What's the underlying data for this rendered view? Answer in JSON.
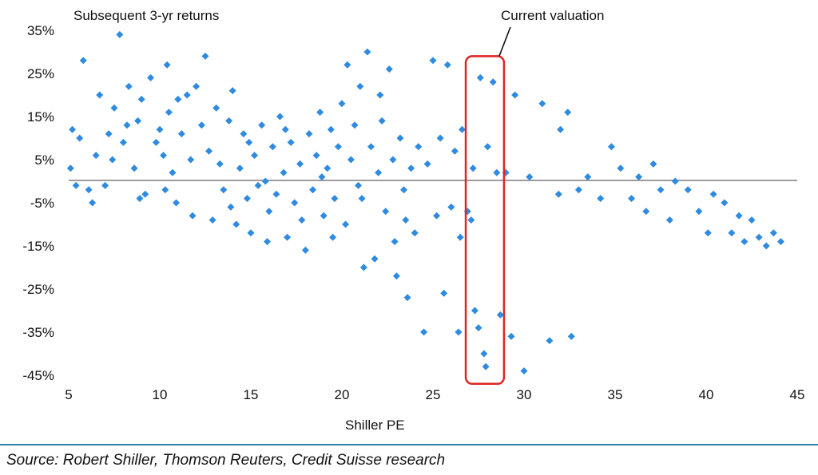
{
  "chart_data": {
    "type": "scatter",
    "title": "Subsequent 3-yr returns",
    "xlabel": "Shiller PE",
    "ylabel": "",
    "xlim": [
      5,
      45
    ],
    "ylim": [
      -45,
      35
    ],
    "x_ticks": [
      "5",
      "10",
      "15",
      "20",
      "25",
      "30",
      "35",
      "40",
      "45"
    ],
    "y_ticks": [
      "35%",
      "25%",
      "15%",
      "5%",
      "-5%",
      "-15%",
      "-25%",
      "-35%",
      "-45%"
    ],
    "grid": false,
    "marker_color": "#2e8be0",
    "highlight_box_color": "#e02424",
    "annotation": {
      "text": "Current valuation",
      "x_range": [
        26.8,
        28.9
      ],
      "y_range": [
        -47,
        29
      ]
    },
    "series": [
      {
        "points": [
          [
            5.1,
            3
          ],
          [
            5.2,
            12
          ],
          [
            5.4,
            -1
          ],
          [
            5.6,
            10
          ],
          [
            5.8,
            28
          ],
          [
            6.1,
            -2
          ],
          [
            6.3,
            -5
          ],
          [
            6.5,
            6
          ],
          [
            6.7,
            20
          ],
          [
            7.0,
            -1
          ],
          [
            7.2,
            11
          ],
          [
            7.5,
            17
          ],
          [
            7.8,
            34
          ],
          [
            8.0,
            9
          ],
          [
            8.2,
            13
          ],
          [
            8.3,
            22
          ],
          [
            8.6,
            3
          ],
          [
            8.8,
            14
          ],
          [
            9.0,
            19
          ],
          [
            9.2,
            -3
          ],
          [
            9.5,
            24
          ],
          [
            9.8,
            9
          ],
          [
            10.0,
            12
          ],
          [
            10.2,
            6
          ],
          [
            10.4,
            27
          ],
          [
            10.5,
            16
          ],
          [
            10.7,
            2
          ],
          [
            10.9,
            -5
          ],
          [
            11.0,
            19
          ],
          [
            11.2,
            11
          ],
          [
            11.5,
            20
          ],
          [
            11.8,
            -8
          ],
          [
            12.0,
            22
          ],
          [
            12.3,
            13
          ],
          [
            12.5,
            29
          ],
          [
            12.7,
            7
          ],
          [
            12.9,
            -9
          ],
          [
            13.1,
            17
          ],
          [
            13.3,
            4
          ],
          [
            13.5,
            -2
          ],
          [
            13.8,
            14
          ],
          [
            14.0,
            21
          ],
          [
            14.2,
            -10
          ],
          [
            14.4,
            3
          ],
          [
            14.6,
            11
          ],
          [
            14.8,
            -4
          ],
          [
            15.0,
            -12
          ],
          [
            15.2,
            6
          ],
          [
            15.4,
            -1
          ],
          [
            15.6,
            13
          ],
          [
            15.8,
            0
          ],
          [
            16.0,
            -7
          ],
          [
            16.2,
            8
          ],
          [
            16.4,
            -3
          ],
          [
            16.6,
            15
          ],
          [
            16.8,
            2
          ],
          [
            17.0,
            -13
          ],
          [
            17.2,
            9
          ],
          [
            17.4,
            -5
          ],
          [
            17.7,
            4
          ],
          [
            18.0,
            -16
          ],
          [
            18.2,
            11
          ],
          [
            18.4,
            -2
          ],
          [
            18.6,
            6
          ],
          [
            18.8,
            16
          ],
          [
            19.0,
            -8
          ],
          [
            19.2,
            3
          ],
          [
            19.4,
            12
          ],
          [
            19.6,
            -4
          ],
          [
            19.8,
            8
          ],
          [
            20.0,
            18
          ],
          [
            20.2,
            -10
          ],
          [
            20.3,
            27
          ],
          [
            20.5,
            5
          ],
          [
            20.7,
            13
          ],
          [
            20.9,
            -1
          ],
          [
            21.0,
            22
          ],
          [
            21.2,
            -20
          ],
          [
            21.4,
            30
          ],
          [
            21.6,
            8
          ],
          [
            21.8,
            -18
          ],
          [
            22.0,
            2
          ],
          [
            22.2,
            14
          ],
          [
            22.4,
            -7
          ],
          [
            22.6,
            26
          ],
          [
            22.8,
            5
          ],
          [
            23.0,
            -22
          ],
          [
            23.2,
            10
          ],
          [
            23.4,
            -2
          ],
          [
            23.6,
            -27
          ],
          [
            23.8,
            3
          ],
          [
            24.0,
            -12
          ],
          [
            24.2,
            8
          ],
          [
            24.5,
            -35
          ],
          [
            24.7,
            4
          ],
          [
            25.0,
            28
          ],
          [
            25.2,
            -8
          ],
          [
            25.4,
            10
          ],
          [
            25.6,
            -26
          ],
          [
            25.8,
            27
          ],
          [
            26.0,
            -6
          ],
          [
            26.2,
            7
          ],
          [
            26.4,
            -35
          ],
          [
            26.5,
            -13
          ],
          [
            26.6,
            12
          ],
          [
            26.9,
            -7
          ],
          [
            27.1,
            -9
          ],
          [
            27.2,
            3
          ],
          [
            27.3,
            -30
          ],
          [
            27.5,
            -34
          ],
          [
            27.6,
            24
          ],
          [
            27.8,
            -40
          ],
          [
            27.9,
            -43
          ],
          [
            28.0,
            8
          ],
          [
            28.3,
            23
          ],
          [
            28.5,
            2
          ],
          [
            28.7,
            -31
          ],
          [
            29.0,
            2
          ],
          [
            29.3,
            -36
          ],
          [
            29.5,
            20
          ],
          [
            30.0,
            -44
          ],
          [
            30.3,
            1
          ],
          [
            31.0,
            18
          ],
          [
            31.4,
            -37
          ],
          [
            31.9,
            -3
          ],
          [
            32.0,
            12
          ],
          [
            32.4,
            16
          ],
          [
            32.6,
            -36
          ],
          [
            33.0,
            -2
          ],
          [
            33.5,
            1
          ],
          [
            34.2,
            -4
          ],
          [
            34.8,
            8
          ],
          [
            35.3,
            3
          ],
          [
            35.9,
            -4
          ],
          [
            36.3,
            1
          ],
          [
            36.7,
            -7
          ],
          [
            37.1,
            4
          ],
          [
            37.5,
            -2
          ],
          [
            38.0,
            -9
          ],
          [
            38.3,
            0
          ],
          [
            39.0,
            -2
          ],
          [
            39.6,
            -7
          ],
          [
            40.1,
            -12
          ],
          [
            40.4,
            -3
          ],
          [
            41.0,
            -5
          ],
          [
            41.4,
            -12
          ],
          [
            41.8,
            -8
          ],
          [
            42.1,
            -14
          ],
          [
            42.5,
            -9
          ],
          [
            42.9,
            -13
          ],
          [
            43.3,
            -15
          ],
          [
            43.7,
            -12
          ],
          [
            44.1,
            -14
          ],
          [
            7.4,
            5
          ],
          [
            8.9,
            -4
          ],
          [
            10.3,
            -2
          ],
          [
            11.7,
            5
          ],
          [
            13.9,
            -6
          ],
          [
            14.9,
            9
          ],
          [
            15.9,
            -14
          ],
          [
            16.9,
            12
          ],
          [
            17.8,
            -9
          ],
          [
            18.9,
            1
          ],
          [
            19.5,
            -13
          ],
          [
            21.1,
            -4
          ],
          [
            22.1,
            20
          ],
          [
            22.9,
            -14
          ],
          [
            23.5,
            -9
          ]
        ]
      }
    ]
  },
  "source": "Source: Robert Shiller, Thomson Reuters, Credit Suisse research"
}
